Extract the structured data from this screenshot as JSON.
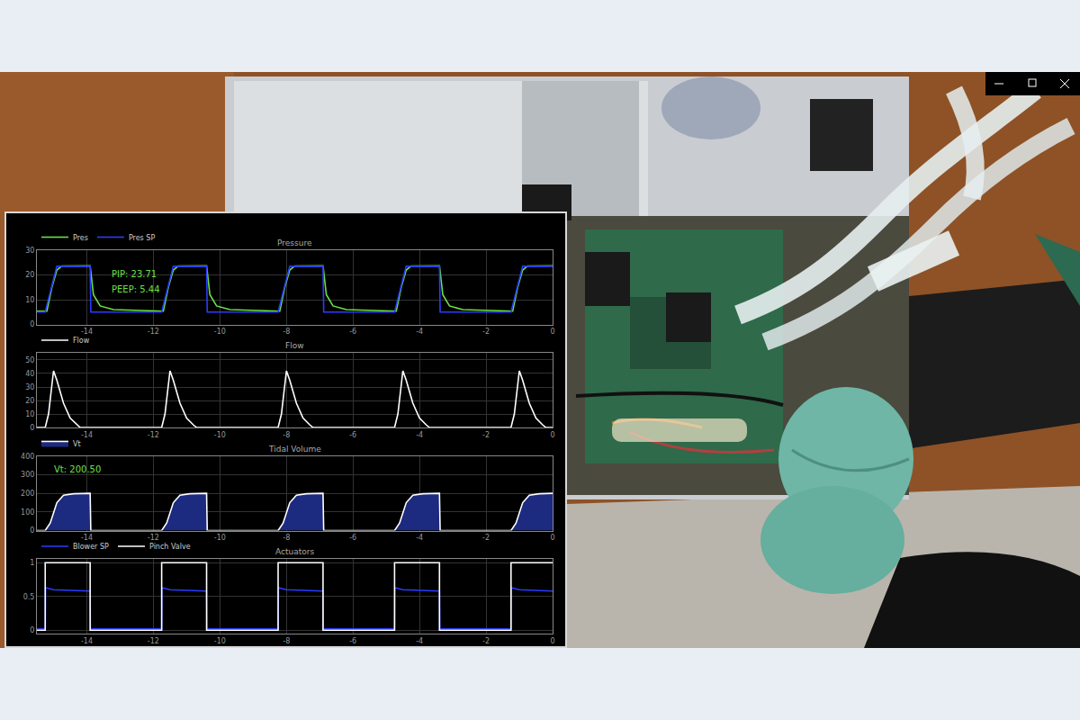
{
  "chart_data": [
    {
      "type": "line",
      "title": "Pressure",
      "grid": true,
      "legend": "top left",
      "xlim": [
        -15.5,
        0
      ],
      "xticks": [
        -14,
        -12,
        -10,
        -8,
        -6,
        -4,
        -2,
        0
      ],
      "ylim": [
        0,
        30
      ],
      "yticks": [
        0,
        10,
        20,
        30
      ],
      "annotations": [
        "PIP: 23.71",
        "PEEP: 5.44"
      ],
      "series": [
        {
          "name": "Pres",
          "color": "#6be04a",
          "x": [
            -15.5,
            -15.2,
            -15.05,
            -14.9,
            -14.75,
            -13.9,
            -13.8,
            -13.6,
            -13.2,
            -12.2,
            -11.7,
            -11.55,
            -11.4,
            -11.25,
            -10.4,
            -10.3,
            -10.1,
            -9.7,
            -8.7,
            -8.2,
            -8.05,
            -7.9,
            -7.75,
            -6.9,
            -6.8,
            -6.6,
            -6.2,
            -5.2,
            -4.7,
            -4.55,
            -4.4,
            -4.25,
            -3.4,
            -3.3,
            -3.1,
            -2.7,
            -1.7,
            -1.2,
            -1.05,
            -0.9,
            -0.75,
            0
          ],
          "values": [
            5.4,
            5.4,
            15,
            22,
            23.6,
            23.7,
            12,
            7.5,
            6,
            5.5,
            5.4,
            15,
            22,
            23.6,
            23.7,
            12,
            7.5,
            6,
            5.5,
            5.4,
            15,
            22,
            23.6,
            23.7,
            12,
            7.5,
            6,
            5.5,
            5.4,
            15,
            22,
            23.6,
            23.7,
            12,
            7.5,
            6,
            5.5,
            5.4,
            15,
            22,
            23.6,
            23.7
          ]
        },
        {
          "name": "Pres SP",
          "color": "#2a3cff",
          "x": [
            -15.5,
            -15.25,
            -14.9,
            -13.9,
            -13.88,
            -11.75,
            -11.4,
            -10.4,
            -10.38,
            -8.25,
            -7.9,
            -6.9,
            -6.88,
            -4.75,
            -4.4,
            -3.4,
            -3.38,
            -1.25,
            -0.9,
            0
          ],
          "values": [
            5,
            5,
            23.5,
            23.5,
            5,
            5,
            23.5,
            23.5,
            5,
            5,
            23.5,
            23.5,
            5,
            5,
            23.5,
            23.5,
            5,
            5,
            23.5,
            23.5
          ]
        }
      ]
    },
    {
      "type": "line",
      "title": "Flow",
      "grid": true,
      "legend": "top left",
      "xlim": [
        -15.5,
        0
      ],
      "xticks": [
        -14,
        -12,
        -10,
        -8,
        -6,
        -4,
        -2,
        0
      ],
      "ylim": [
        0,
        55
      ],
      "yticks": [
        0,
        10,
        20,
        30,
        40,
        50
      ],
      "series": [
        {
          "name": "Flow",
          "color": "#ffffff",
          "x": [
            -15.5,
            -15.25,
            -15.15,
            -15.0,
            -14.9,
            -14.7,
            -14.5,
            -14.3,
            -14.2,
            -11.75,
            -11.65,
            -11.5,
            -11.4,
            -11.2,
            -11.0,
            -10.8,
            -10.7,
            -8.25,
            -8.15,
            -8.0,
            -7.9,
            -7.7,
            -7.5,
            -7.3,
            -7.2,
            -4.75,
            -4.65,
            -4.5,
            -4.4,
            -4.2,
            -4.0,
            -3.8,
            -3.7,
            -1.25,
            -1.15,
            -1.0,
            -0.9,
            -0.7,
            -0.5,
            -0.3,
            -0.2,
            0
          ],
          "values": [
            0,
            0,
            10,
            42,
            35,
            18,
            7,
            2,
            0,
            0,
            10,
            42,
            35,
            18,
            7,
            2,
            0,
            0,
            10,
            42,
            35,
            18,
            7,
            2,
            0,
            0,
            10,
            42,
            35,
            18,
            7,
            2,
            0,
            0,
            10,
            42,
            35,
            18,
            7,
            2,
            0,
            0
          ]
        }
      ]
    },
    {
      "type": "area",
      "title": "Tidal Volume",
      "grid": true,
      "legend": "top left",
      "xlim": [
        -15.5,
        0
      ],
      "xticks": [
        -14,
        -12,
        -10,
        -8,
        -6,
        -4,
        -2,
        0
      ],
      "ylim": [
        0,
        400
      ],
      "yticks": [
        0,
        100,
        200,
        300,
        400
      ],
      "annotations": [
        "Vt: 200.50"
      ],
      "series": [
        {
          "name": "Vt",
          "color": "#1c2a80",
          "x": [
            -15.5,
            -15.25,
            -15.1,
            -14.9,
            -14.7,
            -14.4,
            -13.9,
            -13.88,
            -11.75,
            -11.6,
            -11.4,
            -11.2,
            -10.9,
            -10.4,
            -10.38,
            -8.25,
            -8.1,
            -7.9,
            -7.7,
            -7.4,
            -6.9,
            -6.88,
            -4.75,
            -4.6,
            -4.4,
            -4.2,
            -3.9,
            -3.4,
            -3.38,
            -1.25,
            -1.1,
            -0.9,
            -0.7,
            -0.4,
            0
          ],
          "values": [
            0,
            0,
            40,
            150,
            190,
            198,
            200.5,
            0,
            0,
            40,
            150,
            190,
            198,
            200.5,
            0,
            0,
            40,
            150,
            190,
            198,
            200.5,
            0,
            0,
            40,
            150,
            190,
            198,
            200.5,
            0,
            0,
            40,
            150,
            190,
            198,
            200.5
          ]
        }
      ]
    },
    {
      "type": "line",
      "title": "Actuators",
      "grid": true,
      "legend": "top left",
      "xlim": [
        -15.5,
        0
      ],
      "xticks": [
        -14,
        -12,
        -10,
        -8,
        -6,
        -4,
        -2,
        0
      ],
      "ylim": [
        -0.05,
        1.05
      ],
      "yticks": [
        0,
        0.5,
        1
      ],
      "series": [
        {
          "name": "Blower SP",
          "color": "#2a3cff",
          "x": [
            -15.5,
            -15.25,
            -15.24,
            -15.0,
            -13.9,
            -13.89,
            -11.75,
            -11.74,
            -11.5,
            -10.4,
            -10.39,
            -8.25,
            -8.24,
            -8.0,
            -6.9,
            -6.89,
            -4.75,
            -4.74,
            -4.5,
            -3.4,
            -3.39,
            -1.25,
            -1.24,
            -1.0,
            0
          ],
          "values": [
            0.02,
            0.02,
            0.63,
            0.6,
            0.58,
            0.02,
            0.02,
            0.63,
            0.6,
            0.58,
            0.02,
            0.02,
            0.63,
            0.6,
            0.58,
            0.02,
            0.02,
            0.63,
            0.6,
            0.58,
            0.02,
            0.02,
            0.63,
            0.6,
            0.58
          ]
        },
        {
          "name": "Pinch Valve",
          "color": "#ffffff",
          "x": [
            -15.5,
            -15.25,
            -15.25,
            -13.9,
            -13.9,
            -11.75,
            -11.75,
            -10.4,
            -10.4,
            -8.25,
            -8.25,
            -6.9,
            -6.9,
            -4.75,
            -4.75,
            -3.4,
            -3.4,
            -1.25,
            -1.25,
            0
          ],
          "values": [
            0,
            0,
            1,
            1,
            0,
            0,
            1,
            1,
            0,
            0,
            1,
            1,
            0,
            0,
            1,
            1,
            0,
            0,
            1,
            1
          ]
        }
      ]
    }
  ]
}
